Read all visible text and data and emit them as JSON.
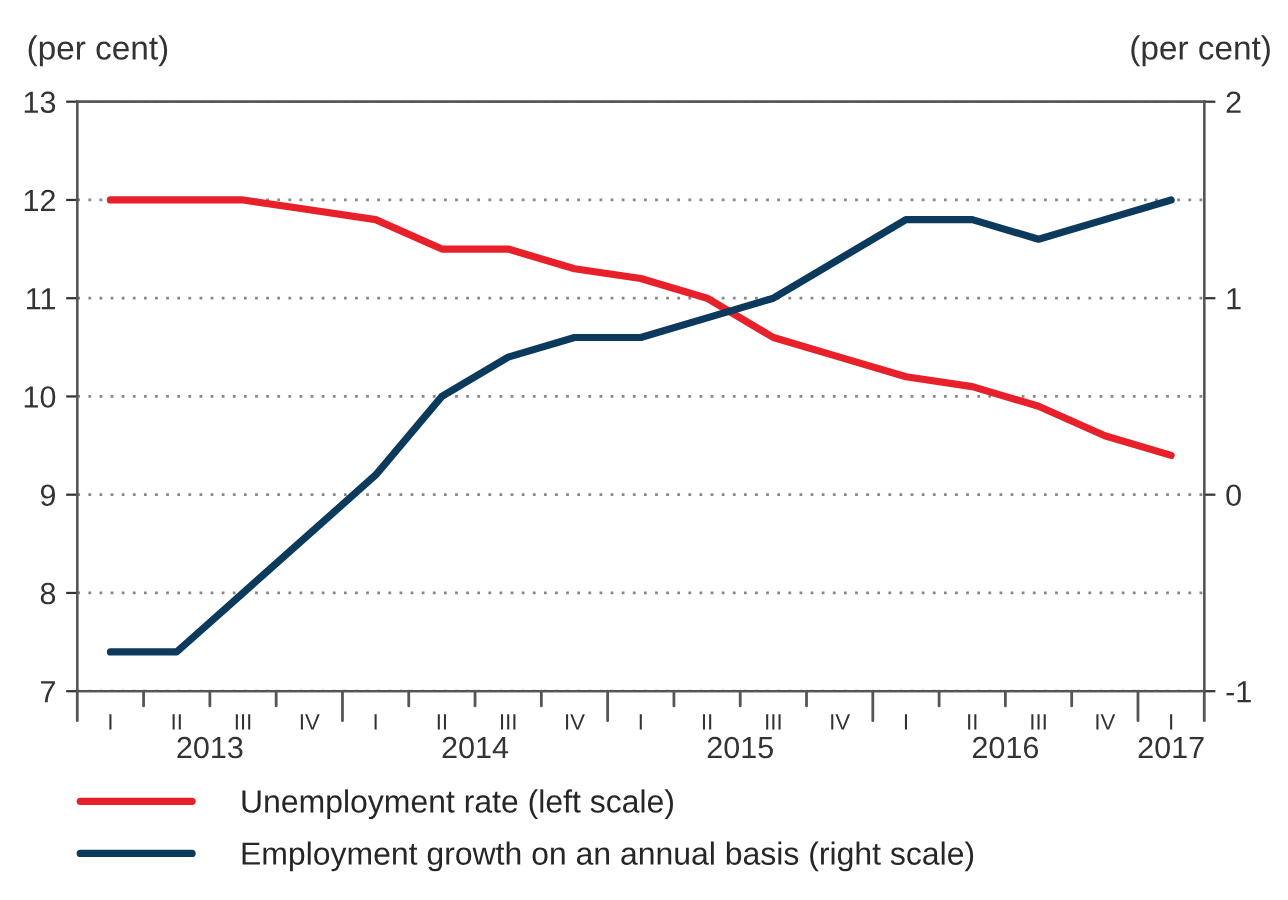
{
  "chart_data": {
    "type": "line",
    "ylabel": "(per cent)",
    "y2label": "(per cent)",
    "categories": [
      "I",
      "II",
      "III",
      "IV",
      "I",
      "II",
      "III",
      "IV",
      "I",
      "II",
      "III",
      "IV",
      "I",
      "II",
      "III",
      "IV",
      "I"
    ],
    "annotations": [
      "2013",
      "2014",
      "2015",
      "2016",
      "2017"
    ],
    "series": [
      {
        "name": "Unemployment rate (left scale)",
        "color": "#e8202a",
        "values": [
          12.0,
          12.0,
          12.0,
          11.9,
          11.8,
          11.5,
          11.5,
          11.3,
          11.2,
          11.0,
          10.6,
          10.4,
          10.2,
          10.1,
          9.9,
          9.6,
          9.4
        ]
      },
      {
        "name": "Employment growth on an annual basis (right scale)",
        "color": "#0b3a5c",
        "axis": "y2",
        "values": [
          -0.8,
          -0.8,
          -0.5,
          -0.2,
          0.1,
          0.5,
          0.7,
          0.8,
          0.8,
          0.9,
          1.0,
          1.2,
          1.4,
          1.4,
          1.3,
          1.4,
          1.5
        ]
      }
    ],
    "ylim": [
      7,
      13
    ],
    "yticks": [
      7,
      8,
      9,
      10,
      11,
      12,
      13
    ],
    "y2lim": [
      -1,
      2
    ],
    "y2ticks": [
      -1,
      0,
      1,
      2
    ],
    "grid": "y",
    "legend": "bottom",
    "line_style": "solid"
  }
}
